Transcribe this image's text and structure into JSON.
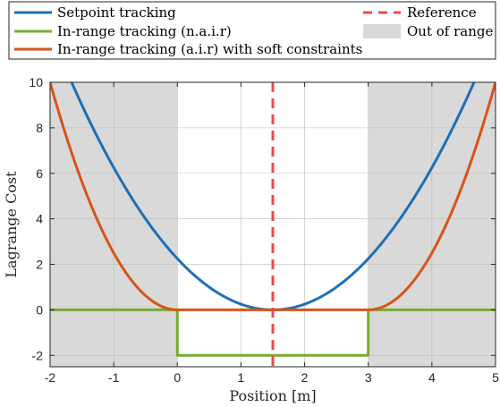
{
  "chart_data": {
    "type": "line",
    "xlabel": "Position [m]",
    "ylabel": "Lagrange Cost",
    "xlim": [
      -2,
      5
    ],
    "ylim": [
      -2.5,
      10
    ],
    "xticks": [
      -2,
      -1,
      0,
      1,
      2,
      3,
      4,
      5
    ],
    "yticks": [
      -2,
      0,
      2,
      4,
      6,
      8,
      10
    ],
    "xtick_labels": [
      "-2",
      "-1",
      "0",
      "1",
      "2",
      "3",
      "4",
      "5"
    ],
    "ytick_labels": [
      "-2",
      "0",
      "2",
      "4",
      "6",
      "8",
      "10"
    ],
    "grid": true,
    "legend_placement": "top, above plot, two columns",
    "out_of_range_regions": [
      [
        -2,
        0
      ],
      [
        3,
        5
      ]
    ],
    "colors": {
      "setpoint": "#1f6fb5",
      "nair": "#77ac30",
      "air": "#d95319",
      "reference": "#f0484d",
      "out_of_range": "#d9d9d9"
    },
    "series": [
      {
        "name": "Setpoint tracking",
        "x": [
          -2,
          -1.5,
          -1,
          -0.5,
          0,
          0.5,
          1,
          1.5,
          2,
          2.5,
          3,
          3.5,
          4,
          4.5,
          5
        ],
        "y": [
          12.25,
          9,
          6.25,
          4,
          2.25,
          1,
          0.25,
          0,
          0.25,
          1,
          2.25,
          4,
          6.25,
          9,
          12.25
        ]
      },
      {
        "name": "In-range tracking (n.a.i.r)",
        "x": [
          -2,
          0,
          0,
          3,
          3,
          5
        ],
        "y": [
          0,
          0,
          -2,
          -2,
          0,
          0
        ]
      },
      {
        "name": "In-range tracking (a.i.r) with soft constraints",
        "x": [
          -2,
          -1.5,
          -1,
          -0.5,
          0,
          1.5,
          3,
          3.5,
          4,
          4.5,
          5
        ],
        "y": [
          10,
          5.625,
          2.5,
          0.625,
          0,
          0,
          0,
          0.625,
          2.5,
          5.625,
          10
        ]
      }
    ],
    "reference": {
      "name": "Reference",
      "x": 1.5
    },
    "legend_entries": [
      "Setpoint tracking",
      "In-range tracking (n.a.i.r)",
      "In-range tracking (a.i.r) with soft constraints",
      "Reference",
      "Out of range"
    ]
  }
}
